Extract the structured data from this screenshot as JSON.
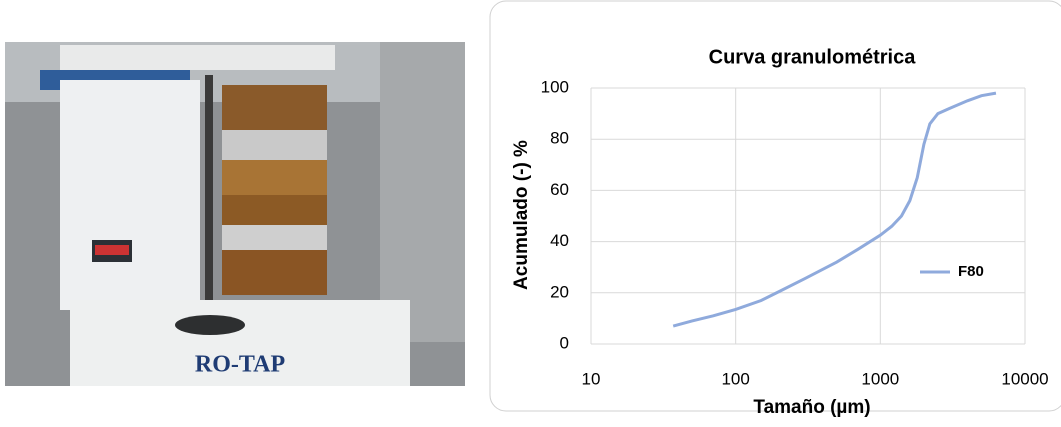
{
  "photo_label": "RO-TAP",
  "chart_data": {
    "type": "line",
    "title": "Curva granulométrica",
    "xlabel": "Tamaño (µm)",
    "ylabel": "Acumulado (-) %",
    "x": [
      37,
      50,
      70,
      100,
      150,
      200,
      300,
      500,
      700,
      1000,
      1200,
      1400,
      1600,
      1800,
      2000,
      2200,
      2500,
      3000,
      4000,
      5000,
      6300
    ],
    "series": [
      {
        "name": "F80",
        "color": "#8faadc",
        "values": [
          7,
          9,
          11,
          13.5,
          17,
          20.5,
          25.5,
          32,
          37,
          42.5,
          46,
          50,
          56,
          65,
          78,
          86,
          90,
          92,
          95,
          97,
          98
        ]
      }
    ],
    "xlim": [
      10,
      10000
    ],
    "xticks": [
      10,
      100,
      1000,
      10000
    ],
    "xscale": "log",
    "ylim": [
      0,
      100
    ],
    "yticks": [
      0,
      20,
      40,
      60,
      80,
      100
    ],
    "grid": true,
    "legend": "right"
  }
}
